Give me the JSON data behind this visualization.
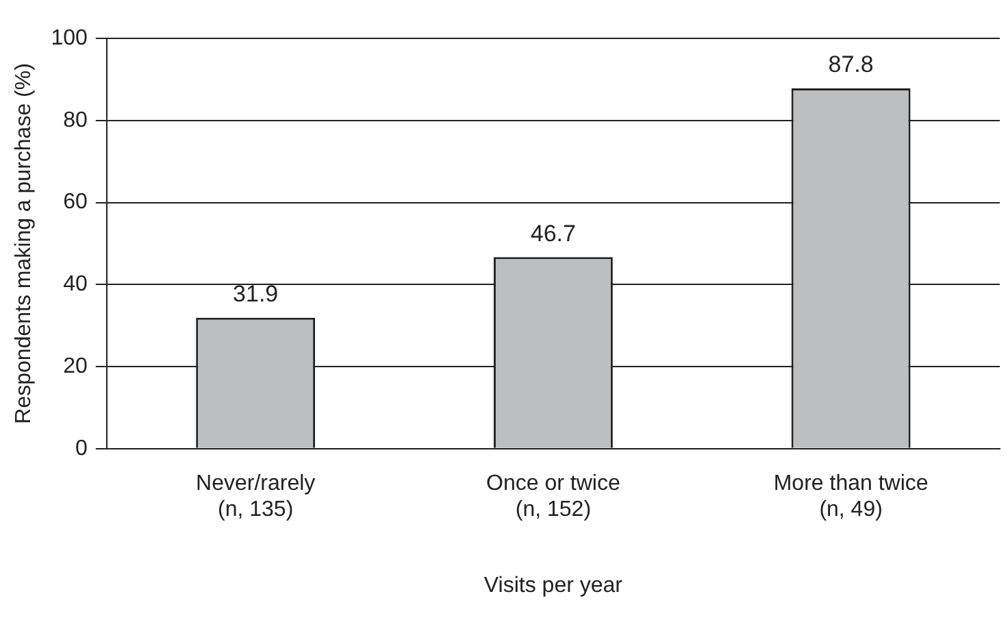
{
  "chart_data": {
    "type": "bar",
    "xlabel": "Visits per year",
    "ylabel": "Respondents making a purchase (%)",
    "categories": [
      "Never/rarely\n(n, 135)",
      "Once or twice\n(n, 152)",
      "More than twice\n(n, 49)"
    ],
    "values": [
      31.9,
      46.7,
      87.8
    ],
    "color": "#bcbec0",
    "ylim": [
      0,
      100
    ],
    "yticks": [
      0,
      20,
      40,
      60,
      80,
      100
    ],
    "grid": "y",
    "data_labels": true,
    "legend": false
  }
}
